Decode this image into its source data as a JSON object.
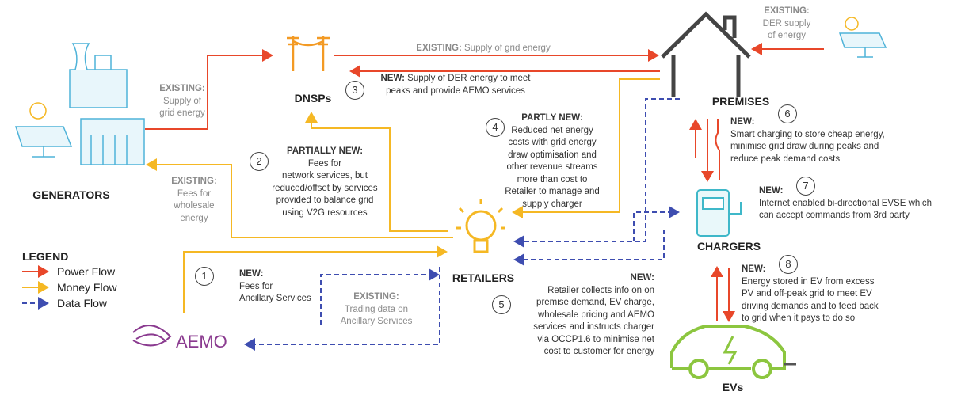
{
  "nodes": [
    {
      "label": "GENERATORS"
    },
    {
      "label": "DNSPs"
    },
    {
      "label": "PREMISES"
    },
    {
      "label": "CHARGERS"
    },
    {
      "label": "EVs"
    },
    {
      "label": "RETAILERS"
    },
    {
      "label": "AEMO"
    }
  ],
  "legend": {
    "title": "LEGEND",
    "items": [
      "Power Flow",
      "Money Flow",
      "Data Flow"
    ]
  },
  "annotations": [
    {
      "prefix": "EXISTING:",
      "lines": [
        "Supply of",
        "grid energy"
      ]
    },
    {
      "prefix": "EXISTING:",
      "lines": [
        "Supply of grid energy"
      ]
    },
    {
      "number": 3,
      "prefix": "NEW:",
      "lines": [
        "Supply of DER energy to meet",
        "peaks and provide AEMO services"
      ]
    },
    {
      "prefix": "EXISTING:",
      "lines": [
        "DER supply",
        "of energy"
      ]
    },
    {
      "prefix": "EXISTING:",
      "lines": [
        "Fees for",
        "wholesale",
        "energy"
      ]
    },
    {
      "number": 2,
      "prefix": "PARTIALLY NEW:",
      "lines": [
        "Fees for",
        "network services, but",
        "reduced/offset by services",
        "provided to balance grid",
        "using V2G resources"
      ]
    },
    {
      "number": 4,
      "prefix": "PARTLY NEW:",
      "lines": [
        "Reduced net energy",
        "costs with grid energy",
        "draw optimisation and",
        "other revenue streams",
        "more than cost to",
        "Retailer to manage and",
        "supply charger"
      ]
    },
    {
      "number": 6,
      "prefix": "NEW:",
      "lines": [
        "Smart charging to store cheap energy,",
        "minimise grid draw during peaks and",
        "reduce peak demand costs"
      ]
    },
    {
      "number": 7,
      "prefix": "NEW:",
      "lines": [
        "Internet enabled bi-directional EVSE which",
        "can accept commands from 3rd party"
      ]
    },
    {
      "number": 8,
      "prefix": "NEW:",
      "lines": [
        "Energy stored in EV from excess",
        "PV and off-peak grid to meet EV",
        "driving demands and to feed back",
        "to grid when it pays to do so"
      ]
    },
    {
      "number": 1,
      "prefix": "NEW:",
      "lines": [
        "Fees for",
        "Ancillary Services"
      ]
    },
    {
      "prefix": "EXISTING:",
      "lines": [
        "Trading data on",
        "Ancillary Services"
      ]
    },
    {
      "number": 5,
      "prefix": "NEW:",
      "lines": [
        "Retailer collects info on on",
        "premise demand, EV charge,",
        "wholesale pricing and AEMO",
        "services and instructs charger",
        "via OCCP1.6 to minimise net",
        "cost to customer for energy"
      ]
    }
  ]
}
